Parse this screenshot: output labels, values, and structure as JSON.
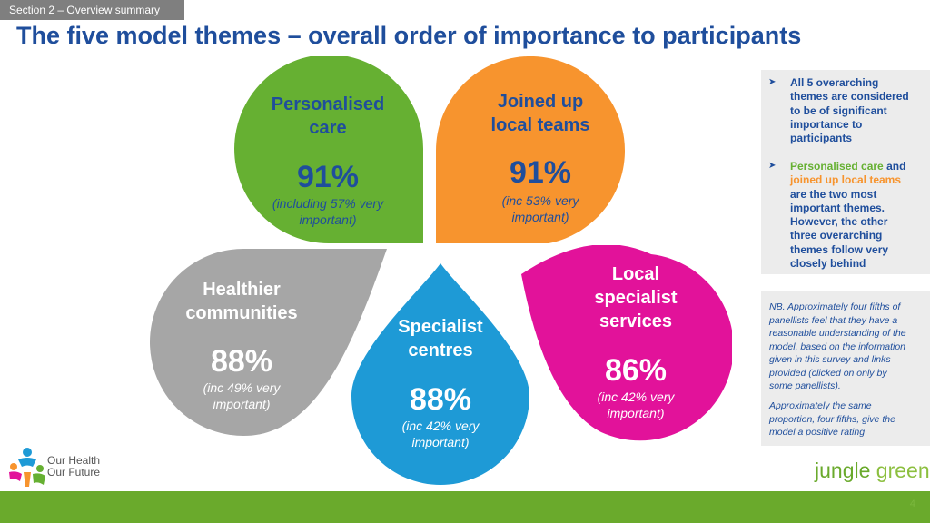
{
  "section_tab": "Section 2 – Overview summary",
  "title": "The five model themes – overall order of importance to participants",
  "themes": {
    "personalised": {
      "name_line1": "Personalised",
      "name_line2": "care",
      "pct": "91%",
      "sub_line1": "(including 57% very",
      "sub_line2": "important)",
      "color": "#66b032"
    },
    "joined": {
      "name_line1": "Joined up",
      "name_line2": "local teams",
      "pct": "91%",
      "sub_line1": "(inc 53% very",
      "sub_line2": "important)",
      "color": "#f7942e"
    },
    "healthier": {
      "name_line1": "Healthier",
      "name_line2": "communities",
      "pct": "88%",
      "sub_line1": "(inc 49% very",
      "sub_line2": "important)",
      "color": "#a6a6a6"
    },
    "specialist": {
      "name_line1": "Specialist",
      "name_line2": "centres",
      "pct": "88%",
      "sub_line1": "(inc 42% very",
      "sub_line2": "important)",
      "color": "#1e9ad6"
    },
    "local": {
      "name_line1": "Local",
      "name_line2": "specialist",
      "name_line3": "services",
      "pct": "86%",
      "sub_line1": "(inc 42% very",
      "sub_line2": "important)",
      "color": "#e2129a"
    }
  },
  "info": {
    "bullet1_lines": [
      "All 5 overarching",
      "themes are considered",
      "to be of significant",
      "importance to",
      "participants"
    ],
    "bullet2_green": "Personalised care",
    "bullet2_and": " and",
    "bullet2_orange": "joined up local teams",
    "bullet2_rest": [
      "are the two most",
      "important themes.",
      "However, the other",
      "three overarching",
      "themes follow very",
      "closely behind"
    ]
  },
  "nb": {
    "para1_lines": [
      "NB. Approximately four fifths of",
      "panellists feel that they have a",
      "reasonable understanding of the",
      "model, based on the information",
      "given in this survey and links",
      "provided (clicked on only by",
      "some panellists)."
    ],
    "para2_lines": [
      "Approximately the same",
      "proportion, four fifths, give the",
      "model a positive rating"
    ]
  },
  "logos": {
    "left_line1": "Our Health",
    "left_line2": "Our Future",
    "right_part1": "jungle",
    "right_part2": "green"
  },
  "page_number": "4",
  "colors": {
    "title": "#1f4e9c",
    "footer": "#6aaa2c",
    "green_text": "#66b032",
    "orange_text": "#f7942e"
  }
}
